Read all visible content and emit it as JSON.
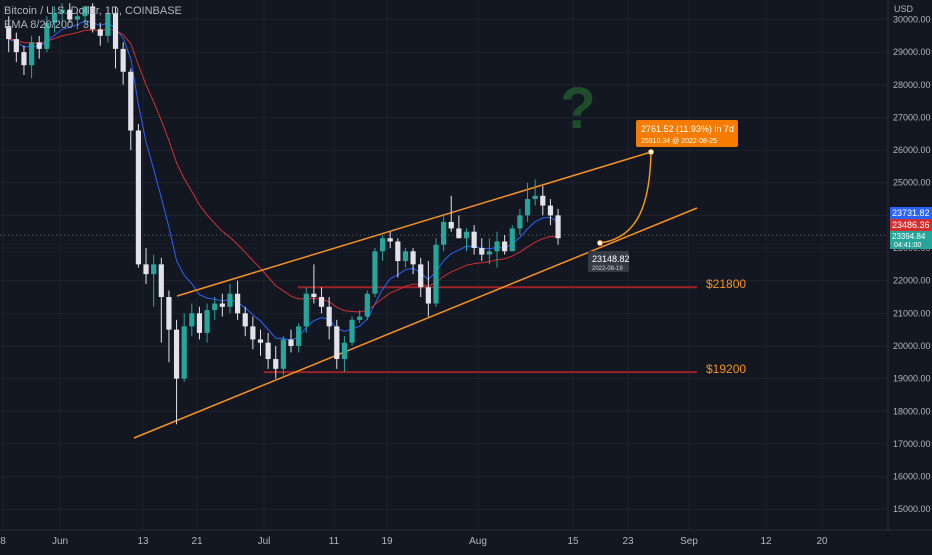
{
  "legend": {
    "symbol": "Bitcoin / U.S. Dollar, 1D, COINBASE",
    "indicator": "EMA 8/20/200 · 3"
  },
  "axis": {
    "y_ticks": [
      "30000.00",
      "29000.00",
      "28000.00",
      "27000.00",
      "26000.00",
      "25000.00",
      "24000.00",
      "23000.00",
      "22000.00",
      "21000.00",
      "20000.00",
      "19000.00",
      "18000.00",
      "17000.00",
      "16000.00",
      "15000.00"
    ],
    "x_ticks": [
      "8",
      "Jun",
      "13",
      "21",
      "Jul",
      "11",
      "19",
      "Aug",
      "15",
      "23",
      "Sep",
      "12",
      "20"
    ],
    "currency": "USD"
  },
  "price_tags": {
    "last": "23731.82",
    "ema": "23486.36",
    "current": "23394.84",
    "countdown": "04:41:00"
  },
  "levels": [
    {
      "label": "$21800",
      "value": 21800
    },
    {
      "label": "$19200",
      "value": 19200
    }
  ],
  "projection": {
    "line1": "2761.52 (11.93%) in 7d",
    "line2": "25910.34 @ 2022-08-25",
    "start_label": "23148.82",
    "start_date": "2022-08-19"
  },
  "annotation": {
    "symbol": "?"
  },
  "colors": {
    "background": "#131722",
    "up": "#26a69a",
    "down": "#e2e2e8",
    "channel": "#f7931a",
    "level": "#9b2226",
    "ema_fast": "#2962ff",
    "ema_slow": "#d32f2f",
    "question": "#1e4d2b"
  },
  "chart_data": {
    "type": "candlestick",
    "title": "Bitcoin / U.S. Dollar, 1D, COINBASE",
    "ylim": [
      14500,
      30500
    ],
    "candles": [
      [
        29800,
        30100,
        29000,
        29400
      ],
      [
        29400,
        29600,
        28700,
        29000
      ],
      [
        29000,
        29200,
        28300,
        28600
      ],
      [
        28600,
        29500,
        28200,
        29300
      ],
      [
        29300,
        29500,
        28800,
        29100
      ],
      [
        29100,
        30100,
        29000,
        29900
      ],
      [
        29900,
        30400,
        29600,
        30200
      ],
      [
        30200,
        30500,
        29800,
        30300
      ],
      [
        30300,
        30500,
        29900,
        30000
      ],
      [
        30000,
        30200,
        29700,
        30100
      ],
      [
        30100,
        30400,
        29800,
        30400
      ],
      [
        30400,
        30500,
        29600,
        29700
      ],
      [
        29700,
        29900,
        29200,
        29500
      ],
      [
        29500,
        30300,
        29300,
        30200
      ],
      [
        30200,
        30400,
        28500,
        29100
      ],
      [
        29100,
        29300,
        28000,
        28400
      ],
      [
        28400,
        28500,
        26000,
        26600
      ],
      [
        26600,
        26800,
        22400,
        22500
      ],
      [
        22500,
        23000,
        21900,
        22200
      ],
      [
        22200,
        22800,
        21200,
        22500
      ],
      [
        22500,
        22700,
        20100,
        21500
      ],
      [
        21500,
        21700,
        19500,
        20500
      ],
      [
        20500,
        20800,
        17600,
        19000
      ],
      [
        19000,
        21000,
        18900,
        20600
      ],
      [
        20600,
        21300,
        20300,
        21000
      ],
      [
        21000,
        21200,
        20200,
        20400
      ],
      [
        20400,
        21300,
        20100,
        21100
      ],
      [
        21100,
        21500,
        20800,
        21300
      ],
      [
        21300,
        21600,
        20900,
        21200
      ],
      [
        21200,
        21900,
        21000,
        21600
      ],
      [
        21600,
        22000,
        20800,
        21000
      ],
      [
        21000,
        21200,
        20300,
        20600
      ],
      [
        20600,
        20900,
        19900,
        20200
      ],
      [
        20200,
        20500,
        19700,
        20100
      ],
      [
        20100,
        20400,
        19300,
        19600
      ],
      [
        19600,
        20000,
        19000,
        19300
      ],
      [
        19300,
        20300,
        19100,
        20200
      ],
      [
        20200,
        20500,
        19800,
        20000
      ],
      [
        20000,
        20700,
        19800,
        20600
      ],
      [
        20600,
        21800,
        20400,
        21600
      ],
      [
        21600,
        22500,
        21300,
        21500
      ],
      [
        21500,
        21800,
        21000,
        21200
      ],
      [
        21200,
        21500,
        20200,
        20600
      ],
      [
        20600,
        20800,
        19300,
        19600
      ],
      [
        19600,
        20300,
        19200,
        20100
      ],
      [
        20100,
        20900,
        20000,
        20800
      ],
      [
        20800,
        21100,
        20700,
        20900
      ],
      [
        20900,
        21700,
        20800,
        21600
      ],
      [
        21600,
        23000,
        21500,
        22900
      ],
      [
        22900,
        23400,
        22600,
        23300
      ],
      [
        23300,
        23500,
        23000,
        23200
      ],
      [
        23200,
        23300,
        22100,
        22600
      ],
      [
        22600,
        23000,
        22400,
        22900
      ],
      [
        22900,
        23000,
        22200,
        22500
      ],
      [
        22500,
        22700,
        21500,
        21800
      ],
      [
        21800,
        22600,
        20900,
        21300
      ],
      [
        21300,
        23300,
        21200,
        23100
      ],
      [
        23100,
        24000,
        22900,
        23800
      ],
      [
        23800,
        24600,
        23500,
        23600
      ],
      [
        23600,
        24000,
        23300,
        23300
      ],
      [
        23300,
        23600,
        22900,
        23500
      ],
      [
        23500,
        23700,
        22800,
        23000
      ],
      [
        23000,
        23300,
        22600,
        22800
      ],
      [
        22800,
        23300,
        22500,
        22900
      ],
      [
        22900,
        23500,
        22400,
        23200
      ],
      [
        23200,
        23400,
        22800,
        22900
      ],
      [
        22900,
        23700,
        22900,
        23600
      ],
      [
        23600,
        24200,
        23400,
        24000
      ],
      [
        24000,
        25000,
        23800,
        24500
      ],
      [
        24500,
        25100,
        24300,
        24600
      ],
      [
        24600,
        24900,
        24000,
        24300
      ],
      [
        24300,
        24500,
        23700,
        24000
      ],
      [
        24000,
        24200,
        23100,
        23300
      ]
    ]
  }
}
